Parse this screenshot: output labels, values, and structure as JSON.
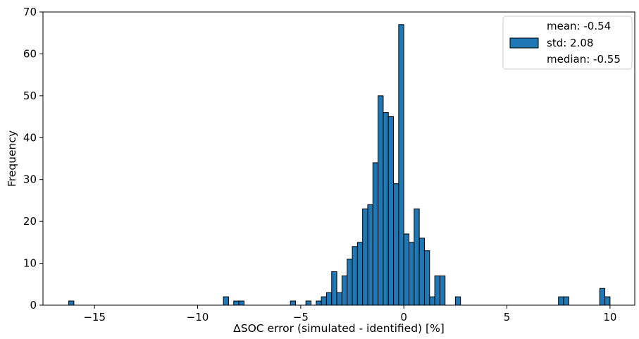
{
  "chart_data": {
    "type": "bar",
    "title": "",
    "xlabel": "ΔSOC error (simulated - identified) [%]",
    "ylabel": "Frequency",
    "xlim": [
      -17.5,
      11.2
    ],
    "ylim": [
      0,
      70
    ],
    "bin_width": 0.25,
    "x_ticks": [
      {
        "value": -15,
        "label": "−15"
      },
      {
        "value": -10,
        "label": "−10"
      },
      {
        "value": -5,
        "label": "−5"
      },
      {
        "value": 0,
        "label": "0"
      },
      {
        "value": 5,
        "label": "5"
      },
      {
        "value": 10,
        "label": "10"
      }
    ],
    "y_ticks": [
      {
        "value": 0,
        "label": "0"
      },
      {
        "value": 10,
        "label": "10"
      },
      {
        "value": 20,
        "label": "20"
      },
      {
        "value": 30,
        "label": "30"
      },
      {
        "value": 40,
        "label": "40"
      },
      {
        "value": 50,
        "label": "50"
      },
      {
        "value": 60,
        "label": "60"
      },
      {
        "value": 70,
        "label": "70"
      }
    ],
    "bar_color": "#1f77b4",
    "edge_color": "#000000",
    "bins": [
      {
        "x": -16.125,
        "count": 1
      },
      {
        "x": -8.625,
        "count": 2
      },
      {
        "x": -8.125,
        "count": 1
      },
      {
        "x": -7.875,
        "count": 1
      },
      {
        "x": -5.375,
        "count": 1
      },
      {
        "x": -4.625,
        "count": 1
      },
      {
        "x": -4.125,
        "count": 1
      },
      {
        "x": -3.875,
        "count": 2
      },
      {
        "x": -3.625,
        "count": 3
      },
      {
        "x": -3.375,
        "count": 8
      },
      {
        "x": -3.125,
        "count": 3
      },
      {
        "x": -2.875,
        "count": 7
      },
      {
        "x": -2.625,
        "count": 11
      },
      {
        "x": -2.375,
        "count": 14
      },
      {
        "x": -2.125,
        "count": 15
      },
      {
        "x": -1.875,
        "count": 23
      },
      {
        "x": -1.625,
        "count": 24
      },
      {
        "x": -1.375,
        "count": 34
      },
      {
        "x": -1.125,
        "count": 50
      },
      {
        "x": -0.875,
        "count": 46
      },
      {
        "x": -0.625,
        "count": 45
      },
      {
        "x": -0.375,
        "count": 29
      },
      {
        "x": -0.125,
        "count": 67
      },
      {
        "x": 0.125,
        "count": 17
      },
      {
        "x": 0.375,
        "count": 15
      },
      {
        "x": 0.625,
        "count": 23
      },
      {
        "x": 0.875,
        "count": 16
      },
      {
        "x": 1.125,
        "count": 13
      },
      {
        "x": 1.375,
        "count": 2
      },
      {
        "x": 1.625,
        "count": 7
      },
      {
        "x": 1.875,
        "count": 7
      },
      {
        "x": 2.625,
        "count": 2
      },
      {
        "x": 7.625,
        "count": 2
      },
      {
        "x": 7.875,
        "count": 2
      },
      {
        "x": 9.625,
        "count": 4
      },
      {
        "x": 9.875,
        "count": 2
      }
    ],
    "legend": {
      "placement": "top-right",
      "lines": [
        "mean: -0.54",
        "std: 2.08",
        "median: -0.55"
      ]
    }
  }
}
